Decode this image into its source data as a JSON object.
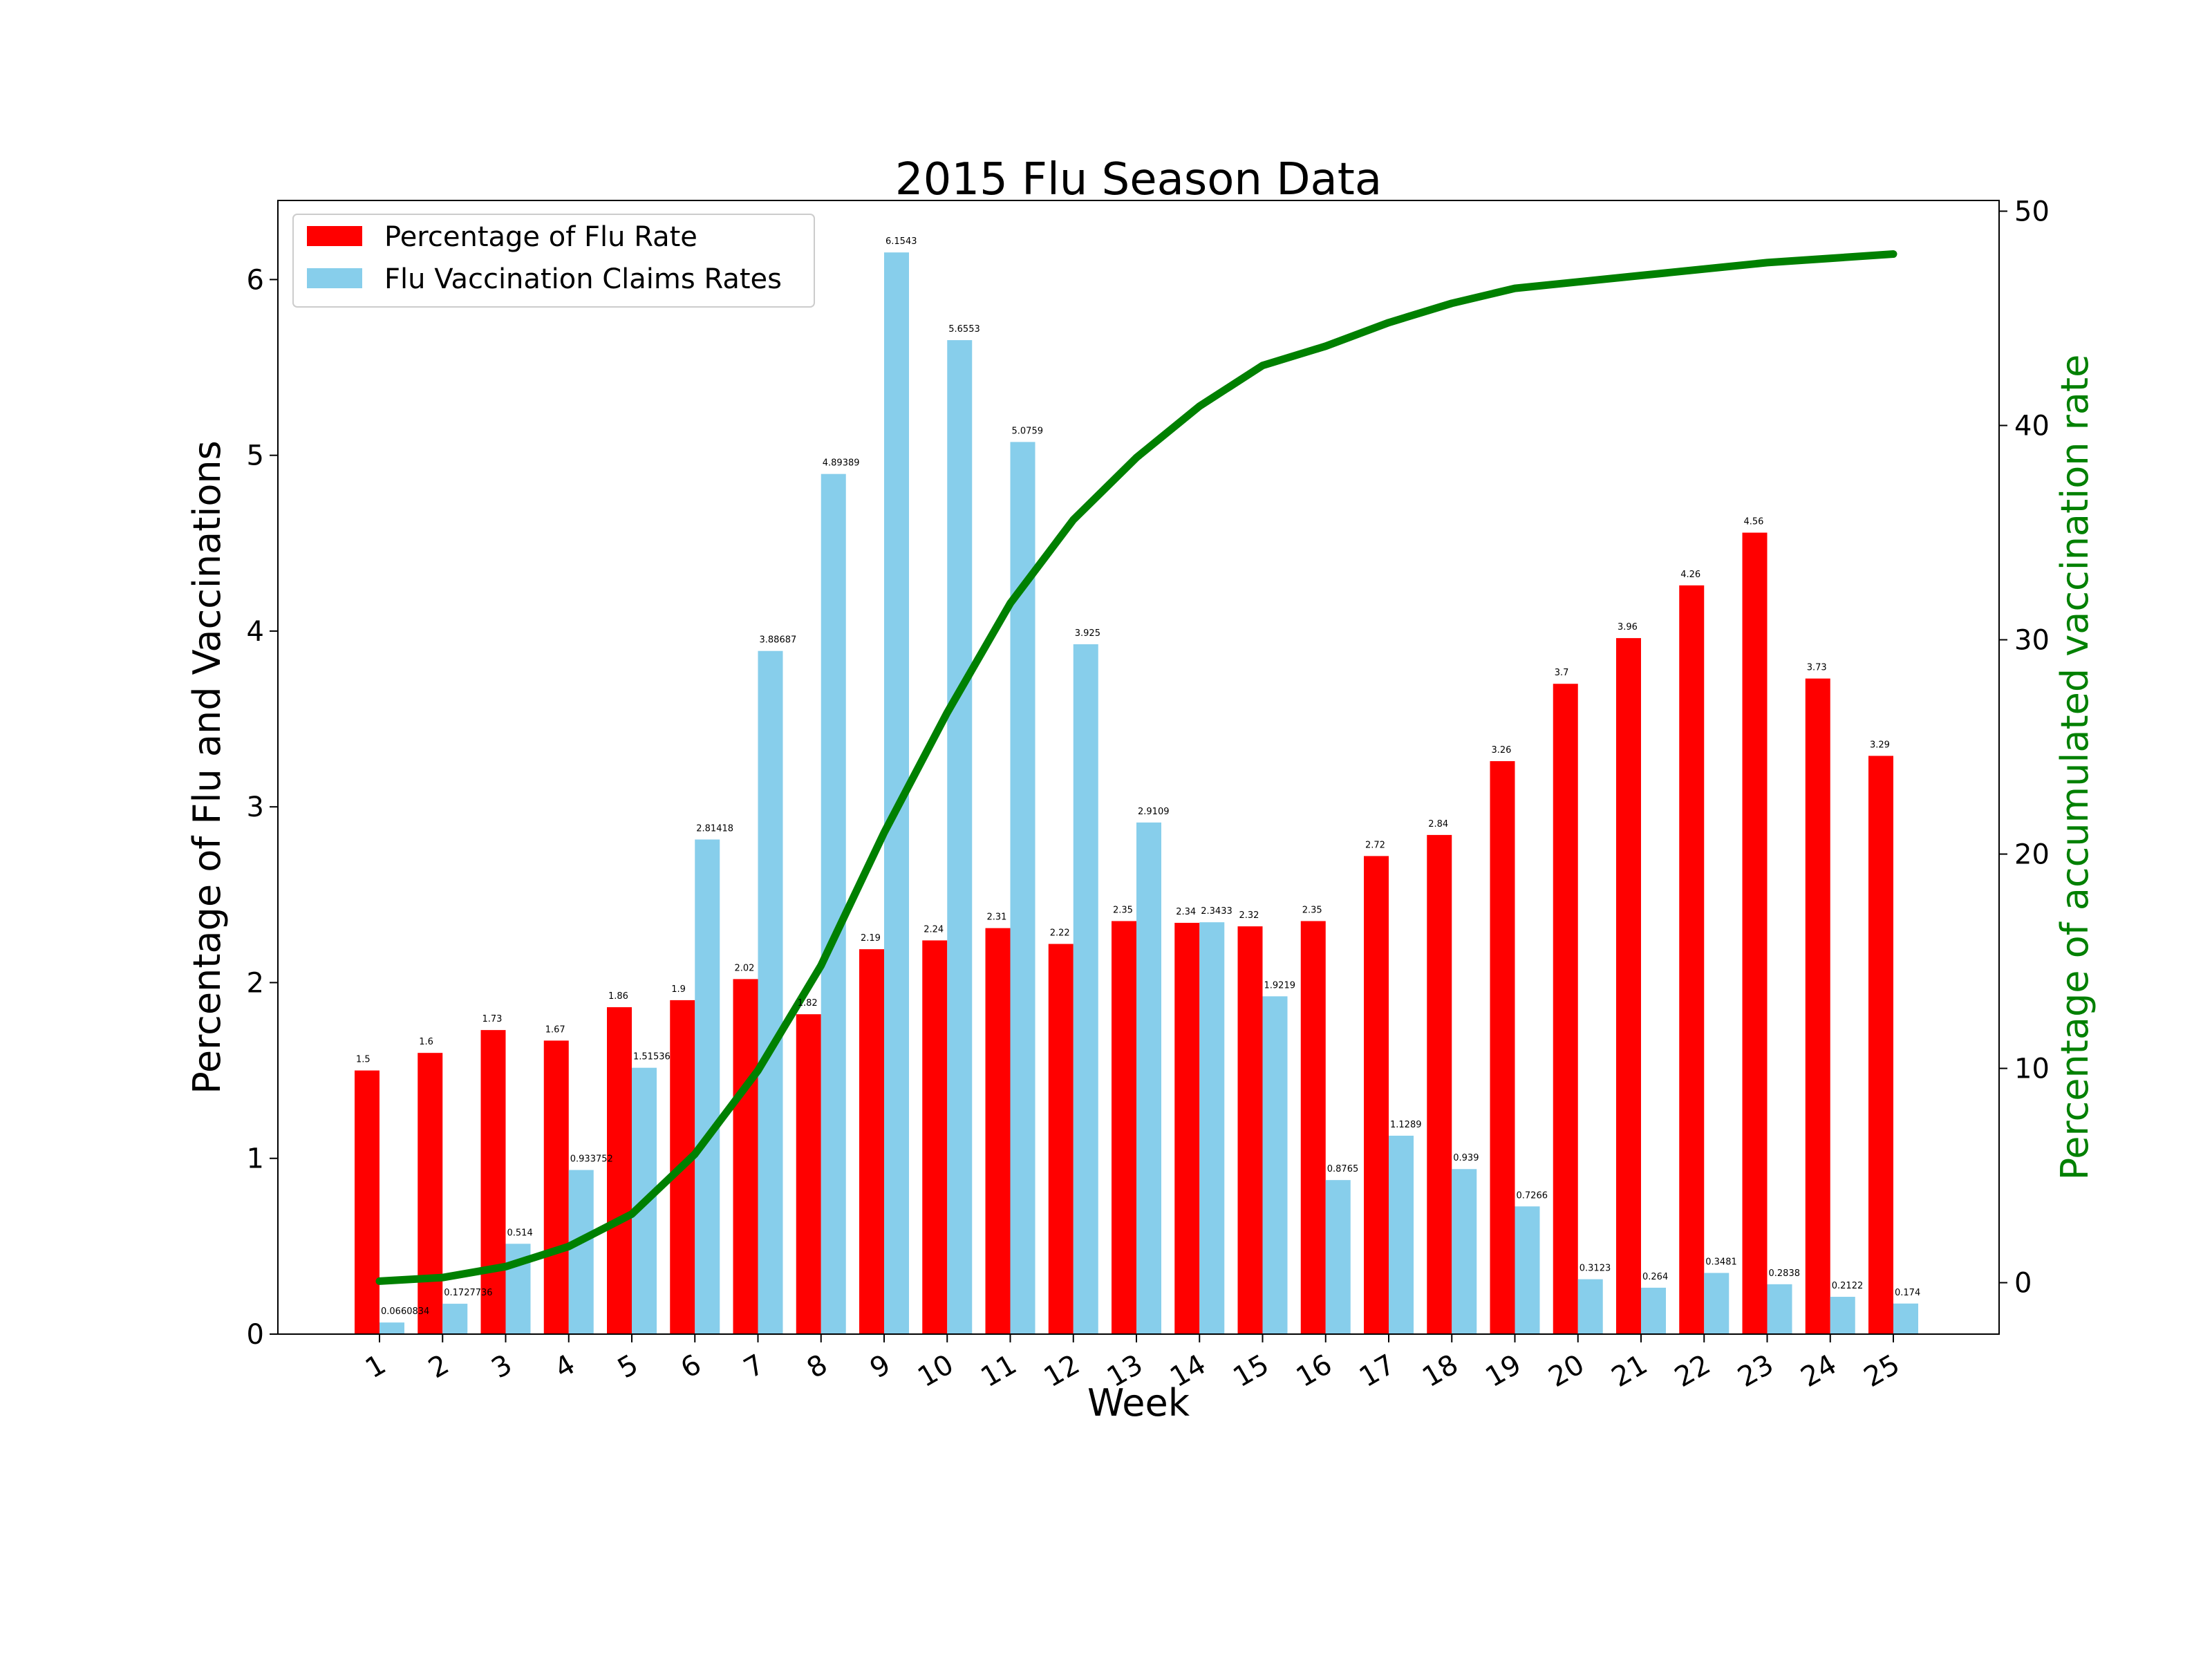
{
  "chart_data": {
    "type": "bar",
    "title": "2015 Flu Season Data",
    "xlabel": "Week",
    "ylabel": "Percentage of Flu and Vaccinations",
    "y2label": "Percentage of accumulated vaccination rate",
    "categories": [
      "1",
      "2",
      "3",
      "4",
      "5",
      "6",
      "7",
      "8",
      "9",
      "10",
      "11",
      "12",
      "13",
      "14",
      "15",
      "16",
      "17",
      "18",
      "19",
      "20",
      "21",
      "22",
      "23",
      "24",
      "25"
    ],
    "ylim": [
      0,
      6.45
    ],
    "y2lim": [
      -2.4,
      50.5
    ],
    "yticks": [
      "0",
      "1",
      "2",
      "3",
      "4",
      "5",
      "6"
    ],
    "y2ticks": [
      "0",
      "10",
      "20",
      "30",
      "40",
      "50"
    ],
    "legend": {
      "position": "upper-left"
    },
    "series": [
      {
        "name": "Percentage of Flu Rate",
        "color": "#ff0000",
        "values": [
          1.5,
          1.6,
          1.73,
          1.67,
          1.86,
          1.9,
          2.02,
          1.82,
          2.19,
          2.24,
          2.31,
          2.22,
          2.35,
          2.34,
          2.32,
          2.35,
          2.72,
          2.84,
          3.26,
          3.7,
          3.96,
          4.26,
          4.56,
          3.73,
          3.29
        ],
        "labels": [
          "1.5",
          "1.6",
          "1.73",
          "1.67",
          "1.86",
          "1.9",
          "2.02",
          "1.82",
          "2.19",
          "2.24",
          "2.31",
          "2.22",
          "2.35",
          "2.34",
          "2.32",
          "2.35",
          "2.72",
          "2.84",
          "3.26",
          "3.7",
          "3.96",
          "4.26",
          "4.56",
          "3.73",
          "3.29"
        ]
      },
      {
        "name": "Flu Vaccination Claims Rates",
        "color": "#87ceeb",
        "values": [
          0.0660834,
          0.1727736,
          0.514,
          0.933752,
          1.51536,
          2.81418,
          3.88687,
          4.89389,
          6.1543,
          5.6553,
          5.0759,
          3.925,
          2.9109,
          2.3433,
          1.9219,
          0.8765,
          1.1289,
          0.939,
          0.7266,
          0.3123,
          0.264,
          0.3481,
          0.2838,
          0.2122,
          0.174
        ],
        "labels": [
          "0.0660834",
          "0.1727736",
          "0.514",
          "0.933752",
          "1.51536",
          "2.81418",
          "3.88687",
          "4.89389",
          "6.1543",
          "5.6553",
          "5.0759",
          "3.925",
          "2.9109",
          "2.3433",
          "1.9219",
          "0.8765",
          "1.1289",
          "0.939",
          "0.7266",
          "0.3123",
          "0.264",
          "0.3481",
          "0.2838",
          "0.2122",
          "0.174"
        ]
      },
      {
        "name": "accumulated vaccination rate",
        "type": "line",
        "axis": "right",
        "color": "#008000",
        "values": [
          0.07,
          0.24,
          0.75,
          1.69,
          3.2,
          6.0,
          9.9,
          14.8,
          21.0,
          26.6,
          31.7,
          35.6,
          38.5,
          40.9,
          42.8,
          43.7,
          44.8,
          45.7,
          46.4,
          46.7,
          47.0,
          47.3,
          47.6,
          47.8,
          48.0
        ]
      }
    ]
  }
}
